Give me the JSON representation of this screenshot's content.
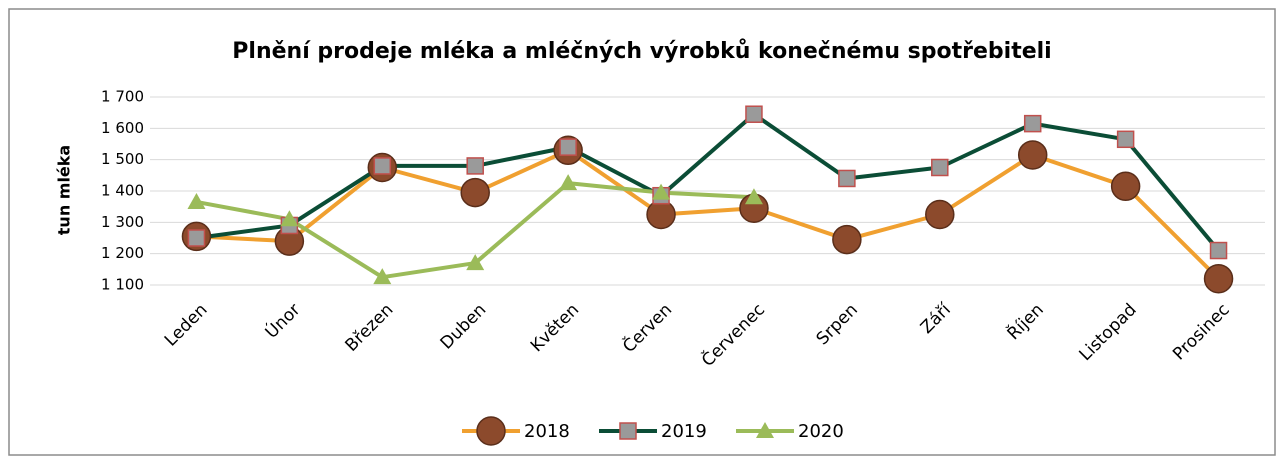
{
  "chart_data": {
    "type": "line",
    "title": "Plnění prodeje mléka a mléčných výrobků konečnému spotřebiteli",
    "y_label": "tun mléka",
    "categories": [
      "Leden",
      "Únor",
      "Březen",
      "Duben",
      "Květen",
      "Červen",
      "Červenec",
      "Srpen",
      "Září",
      "Říjen",
      "Listopad",
      "Prosinec"
    ],
    "series": [
      {
        "name": "2018",
        "color": "#f0a030",
        "marker": "circle",
        "marker_color": "#8c4a2c",
        "values": [
          1255,
          1240,
          1475,
          1395,
          1530,
          1325,
          1345,
          1245,
          1325,
          1515,
          1415,
          1120
        ]
      },
      {
        "name": "2019",
        "color": "#0b4d36",
        "marker": "square",
        "marker_color": "#9a9a9a",
        "values": [
          1250,
          1290,
          1480,
          1480,
          1540,
          1385,
          1645,
          1440,
          1475,
          1615,
          1565,
          1210
        ]
      },
      {
        "name": "2020",
        "color": "#9bbb59",
        "marker": "triangle",
        "marker_color": "#9bbb59",
        "values": [
          1365,
          1310,
          1125,
          1170,
          1425,
          1395,
          1380,
          null,
          null,
          null,
          null,
          null
        ]
      }
    ],
    "ylim": [
      1100,
      1700
    ],
    "yticks": [
      {
        "value": 1100,
        "label": "1 100"
      },
      {
        "value": 1200,
        "label": "1 200"
      },
      {
        "value": 1300,
        "label": "1 300"
      },
      {
        "value": 1400,
        "label": "1 400"
      },
      {
        "value": 1500,
        "label": "1 500"
      },
      {
        "value": 1600,
        "label": "1 600"
      },
      {
        "value": 1700,
        "label": "1 700"
      }
    ],
    "grid": true,
    "legend": "bottom"
  }
}
